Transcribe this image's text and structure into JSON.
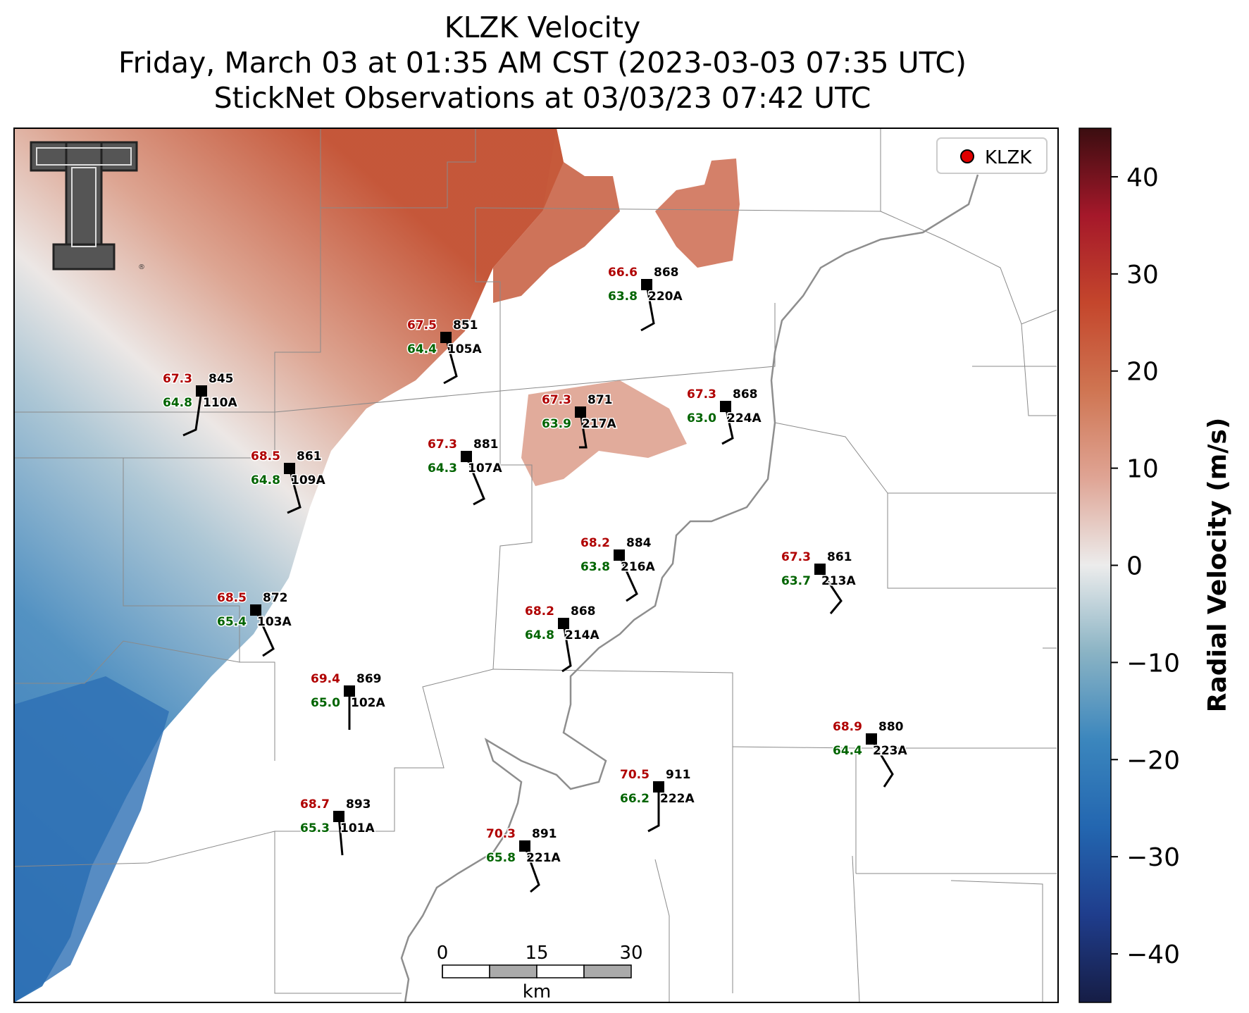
{
  "titles": {
    "line1": "KLZK Velocity",
    "line2": "Friday, March 03 at 01:35 AM CST (2023-03-03 07:35 UTC)",
    "line3": "StickNet Observations at 03/03/23 07:42 UTC"
  },
  "legend": {
    "label": "KLZK",
    "marker_color": "#e00000"
  },
  "colorbar": {
    "label": "Radial Velocity (m/s)",
    "ticks": [
      "40",
      "30",
      "20",
      "10",
      "0",
      "−10",
      "−20",
      "−30",
      "−40"
    ],
    "range": [
      -45,
      45
    ]
  },
  "scale_bar": {
    "labels": [
      "0",
      "15",
      "30"
    ],
    "unit": "km"
  },
  "colors": {
    "temp": "#b00000",
    "dew": "#006400",
    "station": "#000000",
    "inbound": "#2a6fb0",
    "outbound": "#c4502f"
  },
  "stations": [
    {
      "id": "220A",
      "temp": "66.6",
      "dew": "63.8",
      "pres": "868"
    },
    {
      "id": "105A",
      "temp": "67.5",
      "dew": "64.4",
      "pres": "851"
    },
    {
      "id": "110A",
      "temp": "67.3",
      "dew": "64.8",
      "pres": "845"
    },
    {
      "id": "217A",
      "temp": "67.3",
      "dew": "63.9",
      "pres": "871"
    },
    {
      "id": "224A",
      "temp": "67.3",
      "dew": "63.0",
      "pres": "868"
    },
    {
      "id": "109A",
      "temp": "68.5",
      "dew": "64.8",
      "pres": "861"
    },
    {
      "id": "107A",
      "temp": "67.3",
      "dew": "64.3",
      "pres": "881"
    },
    {
      "id": "216A",
      "temp": "68.2",
      "dew": "63.8",
      "pres": "884"
    },
    {
      "id": "213A",
      "temp": "67.3",
      "dew": "63.7",
      "pres": "861"
    },
    {
      "id": "103A",
      "temp": "68.5",
      "dew": "65.4",
      "pres": "872"
    },
    {
      "id": "214A",
      "temp": "68.2",
      "dew": "64.8",
      "pres": "868"
    },
    {
      "id": "102A",
      "temp": "69.4",
      "dew": "65.0",
      "pres": "869"
    },
    {
      "id": "223A",
      "temp": "68.9",
      "dew": "64.4",
      "pres": "880"
    },
    {
      "id": "222A",
      "temp": "70.5",
      "dew": "66.2",
      "pres": "911"
    },
    {
      "id": "101A",
      "temp": "68.7",
      "dew": "65.3",
      "pres": "893"
    },
    {
      "id": "221A",
      "temp": "70.3",
      "dew": "65.8",
      "pres": "891"
    }
  ]
}
